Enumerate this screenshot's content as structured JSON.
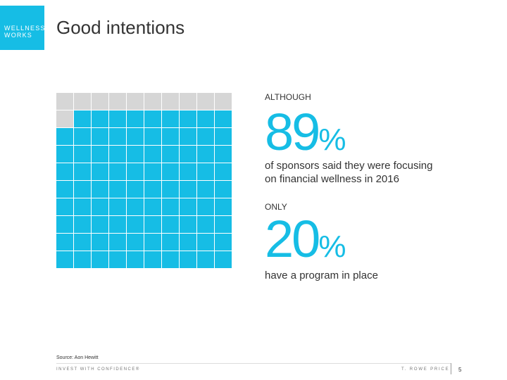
{
  "header": {
    "badge_line1": "WELLNESS",
    "badge_line2": "WORKS",
    "title": "Good intentions"
  },
  "waffle": {
    "total": 100,
    "highlighted": 89,
    "highlight_color": "#16bde5",
    "base_color": "#d6d6d6"
  },
  "stat1": {
    "label": "ALTHOUGH",
    "number": "89",
    "percent": "%",
    "description_line1": "of sponsors said they were focusing",
    "description_line2": "on financial wellness in 2016"
  },
  "stat2": {
    "label": "ONLY",
    "number": "20",
    "percent": "%",
    "description": "have a program in place"
  },
  "footer": {
    "source": "Source: Aon Hewitt",
    "tagline": "INVEST WITH CONFIDENCE®",
    "brand": "T. ROWE PRICE",
    "page_number": "5"
  }
}
